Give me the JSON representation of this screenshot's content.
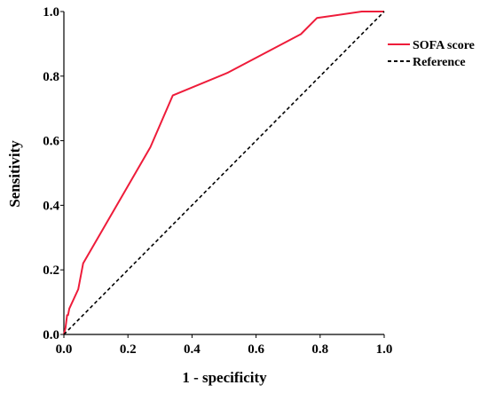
{
  "chart_data": {
    "type": "line",
    "title": "",
    "xlabel": "1 - specificity",
    "ylabel": "Sensitivity",
    "xlim": [
      0,
      1
    ],
    "ylim": [
      0,
      1
    ],
    "x_ticks": [
      "0.0",
      "0.2",
      "0.4",
      "0.6",
      "0.8",
      "1.0"
    ],
    "y_ticks": [
      "0.0",
      "0.2",
      "0.4",
      "0.6",
      "0.8",
      "1.0"
    ],
    "grid": false,
    "legend_position": "top-right",
    "series": [
      {
        "name": "SOFA score",
        "color": "#ee1c3a",
        "style": "solid",
        "x": [
          0.0,
          0.005,
          0.01,
          0.013,
          0.017,
          0.045,
          0.06,
          0.27,
          0.34,
          0.51,
          0.74,
          0.79,
          0.93,
          1.0
        ],
        "y": [
          0.0,
          0.02,
          0.06,
          0.06,
          0.08,
          0.14,
          0.22,
          0.58,
          0.74,
          0.81,
          0.93,
          0.98,
          1.0,
          1.0
        ]
      },
      {
        "name": "Reference",
        "color": "#000000",
        "style": "dashed",
        "x": [
          0,
          1
        ],
        "y": [
          0,
          1
        ]
      }
    ]
  }
}
